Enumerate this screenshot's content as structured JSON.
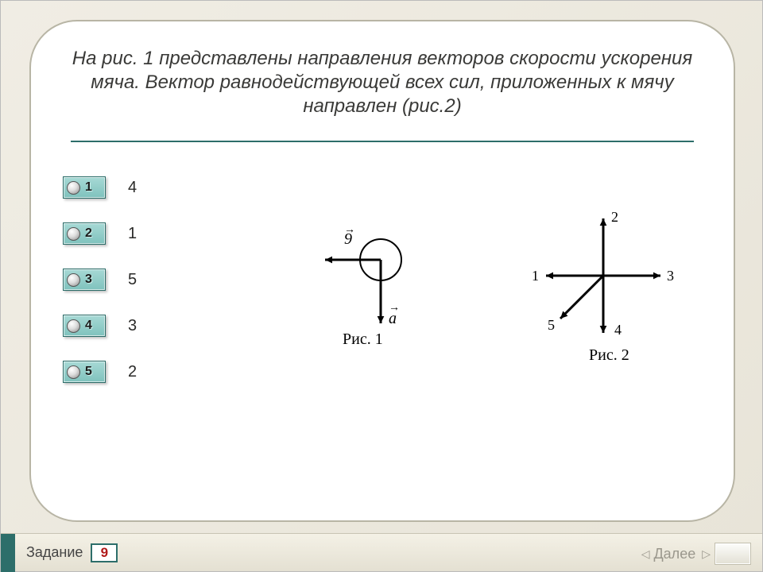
{
  "colors": {
    "accent": "#2d6e6a",
    "card_border": "#b8b5a5",
    "text": "#3a3a38",
    "task_number_color": "#b01818",
    "option_bg_top": "#a7d9d5",
    "option_bg_bottom": "#7fc2bd"
  },
  "question": {
    "text": "На рис. 1 представлены направления векторов скорости ускорения мяча. Вектор равнодействующей всех сил, приложенных к мячу направлен (рис.2)",
    "fontsize": 24,
    "italic": true
  },
  "options": [
    {
      "button": "1",
      "label": "4"
    },
    {
      "button": "2",
      "label": "1"
    },
    {
      "button": "3",
      "label": "5"
    },
    {
      "button": "4",
      "label": "3"
    },
    {
      "button": "5",
      "label": "2"
    }
  ],
  "figure1": {
    "caption": "Рис. 1",
    "v_label": "9",
    "a_label": "а",
    "circle_radius": 26,
    "arrow_length": 70
  },
  "figure2": {
    "caption": "Рис. 2",
    "arrows": [
      {
        "label": "1",
        "dx": -1,
        "dy": 0
      },
      {
        "label": "2",
        "dx": 0,
        "dy": -1
      },
      {
        "label": "3",
        "dx": 1,
        "dy": 0
      },
      {
        "label": "4",
        "dx": 0,
        "dy": 1
      },
      {
        "label": "5",
        "dx": -0.75,
        "dy": 0.75
      }
    ],
    "arrow_length": 72
  },
  "footer": {
    "task_label": "Задание",
    "task_number": "9",
    "next_label": "Далее"
  }
}
